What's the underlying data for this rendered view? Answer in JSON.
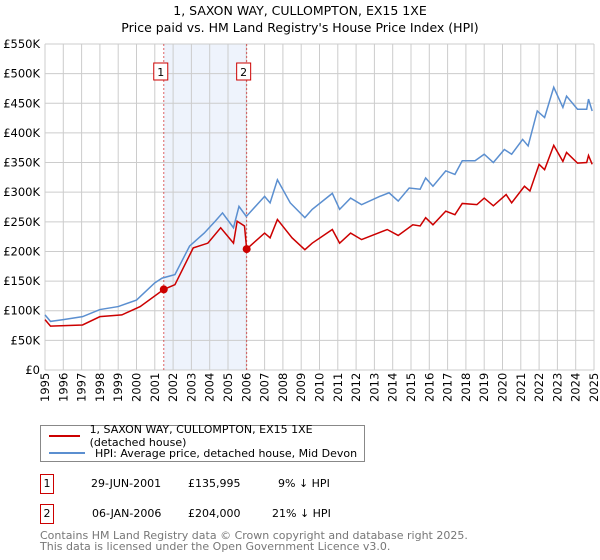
{
  "header": {
    "title": "1, SAXON WAY, CULLOMPTON, EX15 1XE",
    "subtitle": "Price paid vs. HM Land Registry's House Price Index (HPI)"
  },
  "chart_data": {
    "type": "line",
    "title": "1, SAXON WAY, CULLOMPTON, EX15 1XE",
    "subtitle": "Price paid vs. HM Land Registry's House Price Index (HPI)",
    "xlim": [
      1995,
      2025
    ],
    "ylim": [
      0,
      550000
    ],
    "x_ticks": [
      "1995",
      "1996",
      "1997",
      "1998",
      "1999",
      "2000",
      "2001",
      "2002",
      "2003",
      "2004",
      "2005",
      "2006",
      "2007",
      "2008",
      "2009",
      "2010",
      "2011",
      "2012",
      "2013",
      "2014",
      "2015",
      "2016",
      "2017",
      "2018",
      "2019",
      "2020",
      "2021",
      "2022",
      "2023",
      "2024",
      "2025"
    ],
    "y_ticks": [
      {
        "v": 0,
        "label": "£0"
      },
      {
        "v": 50000,
        "label": "£50K"
      },
      {
        "v": 100000,
        "label": "£100K"
      },
      {
        "v": 150000,
        "label": "£150K"
      },
      {
        "v": 200000,
        "label": "£200K"
      },
      {
        "v": 250000,
        "label": "£250K"
      },
      {
        "v": 300000,
        "label": "£300K"
      },
      {
        "v": 350000,
        "label": "£350K"
      },
      {
        "v": 400000,
        "label": "£400K"
      },
      {
        "v": 450000,
        "label": "£450K"
      },
      {
        "v": 500000,
        "label": "£500K"
      },
      {
        "v": 550000,
        "label": "£550K"
      }
    ],
    "grid": true,
    "colors": {
      "property": "#cc0000",
      "hpi": "#5b8fd0",
      "shade": "#eef3fc"
    },
    "shaded_range": [
      2001.49,
      2006.02
    ],
    "series": [
      {
        "name": "1, SAXON WAY, CULLOMPTON, EX15 1XE (detached house)",
        "key": "property",
        "points": [
          [
            1995,
            85000
          ],
          [
            1995.3,
            74000
          ],
          [
            1997.05,
            76000
          ],
          [
            1998,
            90000
          ],
          [
            1999.2,
            93000
          ],
          [
            2000.2,
            107000
          ],
          [
            2001.49,
            135995
          ],
          [
            2002.1,
            144000
          ],
          [
            2003.1,
            206000
          ],
          [
            2003.9,
            214000
          ],
          [
            2004.6,
            240000
          ],
          [
            2005.3,
            214000
          ],
          [
            2005.5,
            251000
          ],
          [
            2005.9,
            243000
          ],
          [
            2006.02,
            204000
          ],
          [
            2007,
            231000
          ],
          [
            2007.3,
            223000
          ],
          [
            2007.7,
            254000
          ],
          [
            2008.5,
            223000
          ],
          [
            2009.2,
            203000
          ],
          [
            2009.6,
            214000
          ],
          [
            2010.7,
            237000
          ],
          [
            2011.1,
            214000
          ],
          [
            2011.7,
            231000
          ],
          [
            2012.3,
            220000
          ],
          [
            2013.7,
            237000
          ],
          [
            2014.3,
            227000
          ],
          [
            2015.1,
            245000
          ],
          [
            2015.5,
            243000
          ],
          [
            2015.8,
            257000
          ],
          [
            2016.2,
            245000
          ],
          [
            2016.9,
            268000
          ],
          [
            2017.4,
            262000
          ],
          [
            2017.8,
            281000
          ],
          [
            2018.6,
            279000
          ],
          [
            2019,
            290000
          ],
          [
            2019.5,
            277000
          ],
          [
            2020.2,
            296000
          ],
          [
            2020.5,
            282000
          ],
          [
            2021.2,
            310000
          ],
          [
            2021.5,
            302000
          ],
          [
            2022,
            347000
          ],
          [
            2022.3,
            338000
          ],
          [
            2022.8,
            379000
          ],
          [
            2023.3,
            352000
          ],
          [
            2023.5,
            367000
          ],
          [
            2024.1,
            349000
          ],
          [
            2024.6,
            350000
          ],
          [
            2024.7,
            362000
          ],
          [
            2024.9,
            347000
          ]
        ]
      },
      {
        "name": "HPI: Average price, detached house, Mid Devon",
        "key": "hpi",
        "points": [
          [
            1995,
            93000
          ],
          [
            1995.3,
            82000
          ],
          [
            1996,
            85000
          ],
          [
            1997.05,
            90000
          ],
          [
            1998,
            102000
          ],
          [
            1999,
            107000
          ],
          [
            2000,
            118000
          ],
          [
            2001,
            147000
          ],
          [
            2001.4,
            155000
          ],
          [
            2002.1,
            161000
          ],
          [
            2002.9,
            209000
          ],
          [
            2003.7,
            231000
          ],
          [
            2004.3,
            251000
          ],
          [
            2004.7,
            265000
          ],
          [
            2005.3,
            240000
          ],
          [
            2005.6,
            276000
          ],
          [
            2006,
            259000
          ],
          [
            2007,
            293000
          ],
          [
            2007.3,
            282000
          ],
          [
            2007.7,
            321000
          ],
          [
            2008.4,
            282000
          ],
          [
            2009.2,
            257000
          ],
          [
            2009.6,
            271000
          ],
          [
            2010.7,
            298000
          ],
          [
            2011.1,
            271000
          ],
          [
            2011.7,
            290000
          ],
          [
            2012.3,
            279000
          ],
          [
            2013.3,
            293000
          ],
          [
            2013.8,
            299000
          ],
          [
            2014.3,
            285000
          ],
          [
            2014.9,
            307000
          ],
          [
            2015.5,
            305000
          ],
          [
            2015.8,
            324000
          ],
          [
            2016.2,
            310000
          ],
          [
            2016.9,
            336000
          ],
          [
            2017.4,
            330000
          ],
          [
            2017.8,
            353000
          ],
          [
            2018.5,
            353000
          ],
          [
            2019,
            364000
          ],
          [
            2019.5,
            350000
          ],
          [
            2020.1,
            372000
          ],
          [
            2020.5,
            364000
          ],
          [
            2021.1,
            389000
          ],
          [
            2021.4,
            378000
          ],
          [
            2021.9,
            437000
          ],
          [
            2022.3,
            426000
          ],
          [
            2022.8,
            477000
          ],
          [
            2023.3,
            443000
          ],
          [
            2023.5,
            462000
          ],
          [
            2024.1,
            440000
          ],
          [
            2024.6,
            440000
          ],
          [
            2024.7,
            457000
          ],
          [
            2024.9,
            437000
          ]
        ]
      }
    ],
    "sales": [
      {
        "label": "1",
        "x": 2001.49,
        "value": 135995
      },
      {
        "label": "2",
        "x": 2006.02,
        "value": 204000
      }
    ]
  },
  "legend": {
    "items": [
      {
        "label": "1, SAXON WAY, CULLOMPTON, EX15 1XE (detached house)"
      },
      {
        "label": "HPI: Average price, detached house, Mid Devon"
      }
    ]
  },
  "transactions": [
    {
      "num": "1",
      "date": "29-JUN-2001",
      "price": "£135,995",
      "hpi": "9% ↓ HPI"
    },
    {
      "num": "2",
      "date": "06-JAN-2006",
      "price": "£204,000",
      "hpi": "21% ↓ HPI"
    }
  ],
  "footer": {
    "line1": "Contains HM Land Registry data © Crown copyright and database right 2025.",
    "line2": "This data is licensed under the Open Government Licence v3.0."
  }
}
